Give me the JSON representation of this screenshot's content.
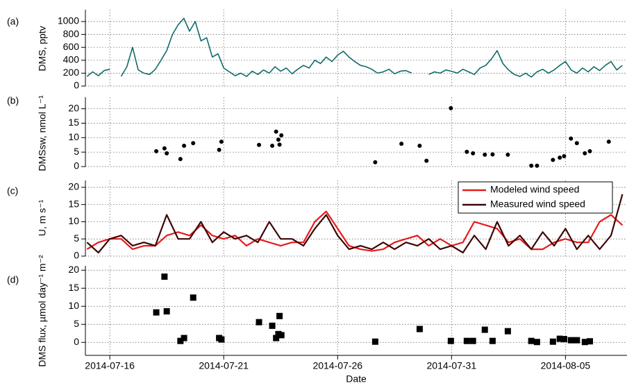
{
  "chart_data": [
    {
      "type": "line",
      "panel_label": "(a)",
      "ylabel": "DMS, pptv",
      "x": [
        15,
        15.25,
        15.5,
        15.75,
        16,
        16.25,
        16.5,
        16.75,
        17,
        17.25,
        17.5,
        17.75,
        18,
        18.25,
        18.5,
        18.75,
        19,
        19.25,
        19.5,
        19.75,
        20,
        20.25,
        20.5,
        20.75,
        21,
        21.25,
        21.5,
        21.75,
        22,
        22.25,
        22.5,
        22.75,
        23,
        23.25,
        23.5,
        23.75,
        24,
        24.25,
        24.5,
        24.75,
        25,
        25.25,
        25.5,
        25.75,
        26,
        26.25,
        26.5,
        26.75,
        27,
        27.25,
        27.5,
        27.75,
        28,
        28.25,
        28.5,
        28.75,
        29,
        29.25,
        29.5,
        29.75,
        30,
        30.25,
        30.5,
        30.75,
        31,
        31.25,
        31.5,
        31.75,
        32,
        32.25,
        32.5,
        32.75,
        33,
        33.25,
        33.5,
        33.75,
        34,
        34.25,
        34.5,
        34.75,
        35,
        35.25,
        35.5,
        35.75,
        36,
        36.25,
        36.5,
        36.75,
        37,
        37.25,
        37.5,
        37.75,
        38,
        38.25,
        38.5
      ],
      "series": [
        {
          "color": "#0f6b6b",
          "values": [
            150,
            220,
            160,
            240,
            260,
            null,
            150,
            300,
            600,
            250,
            200,
            180,
            260,
            400,
            550,
            800,
            950,
            1050,
            850,
            1000,
            700,
            750,
            450,
            500,
            280,
            220,
            160,
            200,
            150,
            230,
            180,
            250,
            200,
            300,
            230,
            280,
            190,
            260,
            320,
            280,
            400,
            350,
            450,
            380,
            480,
            540,
            450,
            380,
            320,
            300,
            260,
            200,
            220,
            260,
            190,
            230,
            240,
            200,
            null,
            null,
            180,
            220,
            200,
            250,
            230,
            200,
            260,
            220,
            180,
            280,
            320,
            420,
            550,
            350,
            250,
            180,
            150,
            200,
            140,
            220,
            260,
            200,
            250,
            320,
            380,
            250,
            200,
            280,
            220,
            300,
            240,
            320,
            380,
            250,
            320
          ]
        }
      ],
      "xlim": [
        14.93,
        38.7
      ],
      "ylim": [
        0,
        1183
      ],
      "yticks": [
        0,
        200,
        400,
        600,
        800,
        1000
      ],
      "grid": true
    },
    {
      "type": "scatter",
      "panel_label": "(b)",
      "ylabel": "DMSsw, nmol L⁻¹",
      "marker": "circle",
      "color": "#000000",
      "x": [
        18.04,
        18.4,
        18.5,
        19.1,
        19.26,
        19.66,
        20.8,
        20.9,
        22.55,
        23.13,
        23.3,
        23.4,
        23.45,
        23.53,
        27.65,
        28.8,
        29.6,
        29.9,
        30.97,
        31.67,
        31.94,
        32.46,
        32.8,
        33.47,
        34.5,
        34.75,
        35.45,
        35.75,
        35.94,
        36.24,
        36.5,
        36.85,
        37.07,
        37.9
      ],
      "values": [
        5.3,
        6.3,
        4.6,
        2.6,
        7.2,
        8.1,
        5.8,
        8.6,
        7.5,
        7.2,
        12.1,
        9.3,
        7.6,
        10.8,
        1.5,
        7.9,
        7.2,
        2.0,
        20.2,
        5.1,
        4.6,
        4.1,
        4.2,
        4.1,
        0.3,
        0.3,
        2.3,
        3.1,
        3.6,
        9.7,
        8.1,
        4.6,
        5.3,
        8.6
      ],
      "xlim": [
        14.93,
        38.7
      ],
      "ylim": [
        0,
        24
      ],
      "yticks": [
        0,
        5,
        10,
        15,
        20
      ],
      "grid": true
    },
    {
      "type": "line",
      "panel_label": "(c)",
      "ylabel": "U, m s⁻¹",
      "x": [
        15,
        15.5,
        16,
        16.5,
        17,
        17.5,
        18,
        18.5,
        19,
        19.5,
        20,
        20.5,
        21,
        21.5,
        22,
        22.5,
        23,
        23.5,
        24,
        24.5,
        25,
        25.5,
        26,
        26.5,
        27,
        27.5,
        28,
        28.5,
        29,
        29.5,
        30,
        30.5,
        31,
        31.5,
        32,
        32.5,
        33,
        33.5,
        34,
        34.5,
        35,
        35.5,
        36,
        36.5,
        37,
        37.5,
        38,
        38.5
      ],
      "series": [
        {
          "name": "Modeled wind speed",
          "color": "#e8191c",
          "values": [
            2,
            4,
            5,
            5,
            2,
            3,
            3,
            6,
            7,
            6,
            9,
            6,
            5,
            6,
            3,
            5,
            4,
            3,
            4,
            4,
            10,
            13,
            8,
            3,
            2,
            1.5,
            2,
            4,
            5,
            6,
            3,
            5,
            3,
            4,
            10,
            9,
            8,
            4,
            5,
            2,
            2,
            4,
            5,
            4,
            4,
            10,
            12,
            9
          ]
        },
        {
          "name": "Measured wind speed",
          "color": "#3d0505",
          "values": [
            4,
            1,
            5,
            6,
            3,
            4,
            3,
            12,
            5,
            5,
            10,
            4,
            7,
            5,
            6,
            4,
            10,
            5,
            5,
            3,
            8,
            12,
            6,
            2,
            3,
            2,
            4,
            2,
            4,
            3,
            5,
            2,
            3,
            1,
            6,
            2,
            10,
            3,
            6,
            2,
            7,
            3,
            8,
            2,
            6,
            2,
            6,
            18
          ]
        }
      ],
      "xlim": [
        14.93,
        38.7
      ],
      "ylim": [
        0,
        22
      ],
      "yticks": [
        0,
        5,
        10,
        15,
        20
      ],
      "grid": true
    },
    {
      "type": "scatter",
      "panel_label": "(d)",
      "ylabel": "DMS flux, µmol day⁻¹ m⁻²",
      "marker": "square",
      "color": "#000000",
      "x": [
        18.04,
        18.4,
        18.5,
        19.1,
        19.26,
        19.66,
        20.8,
        20.9,
        22.55,
        23.13,
        23.3,
        23.4,
        23.45,
        23.53,
        27.65,
        29.6,
        30.97,
        31.67,
        31.94,
        32.46,
        32.8,
        33.47,
        34.5,
        34.75,
        35.45,
        35.75,
        35.94,
        36.24,
        36.5,
        36.85,
        37.07
      ],
      "values": [
        8.3,
        18.2,
        8.6,
        0.4,
        1.2,
        12.4,
        1.2,
        0.8,
        5.6,
        4.6,
        1.2,
        2.3,
        7.3,
        2.0,
        0.2,
        3.7,
        0.4,
        0.4,
        0.4,
        3.5,
        0.4,
        3.1,
        0.4,
        0.1,
        0.2,
        1.0,
        0.9,
        0.6,
        0.6,
        0.1,
        0.3
      ],
      "xlim": [
        14.93,
        38.7
      ],
      "ylim": [
        -3.6,
        21.2
      ],
      "yticks": [
        0,
        5,
        10,
        15,
        20
      ],
      "grid": true,
      "xlabel": "Date",
      "xticks": [
        {
          "value": 16,
          "label": "2014-07-16"
        },
        {
          "value": 21,
          "label": "2014-07-21"
        },
        {
          "value": 26,
          "label": "2014-07-26"
        },
        {
          "value": 31,
          "label": "2014-07-31"
        },
        {
          "value": 36,
          "label": "2014-08-05"
        }
      ]
    }
  ]
}
